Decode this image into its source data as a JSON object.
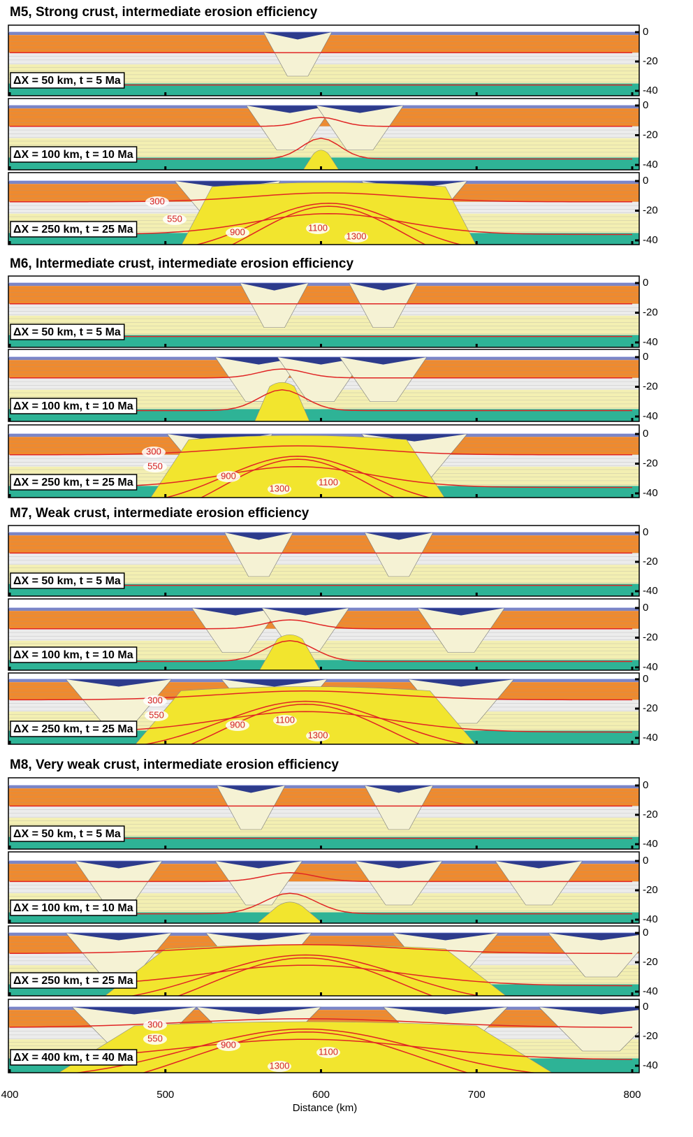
{
  "figure": {
    "groups": [
      {
        "title": "M5, Strong crust, intermediate erosion efficiency",
        "panels": [
          {
            "label": "ΔX = 50 km, t = 5 Ma"
          },
          {
            "label": "ΔX = 100 km, t = 10 Ma"
          },
          {
            "label": "ΔX = 250 km, t = 25 Ma",
            "isotherms": [
              "300",
              "550",
              "900",
              "1100",
              "1300"
            ]
          }
        ]
      },
      {
        "title": "M6, Intermediate crust, intermediate erosion efficiency",
        "panels": [
          {
            "label": "ΔX = 50 km, t = 5 Ma"
          },
          {
            "label": "ΔX = 100 km, t = 10 Ma"
          },
          {
            "label": "ΔX = 250 km, t = 25 Ma",
            "isotherms": [
              "300",
              "550",
              "900",
              "1100",
              "1300"
            ]
          }
        ]
      },
      {
        "title": "M7, Weak crust, intermediate erosion efficiency",
        "panels": [
          {
            "label": "ΔX = 50 km, t = 5 Ma"
          },
          {
            "label": "ΔX = 100 km, t = 10 Ma"
          },
          {
            "label": "ΔX = 250 km, t = 25 Ma",
            "isotherms": [
              "300",
              "550",
              "900",
              "1100",
              "1300"
            ]
          }
        ]
      },
      {
        "title": "M8, Very weak crust, intermediate erosion efficiency",
        "panels": [
          {
            "label": "ΔX = 50 km, t = 5 Ma"
          },
          {
            "label": "ΔX = 100 km, t = 10 Ma"
          },
          {
            "label": "ΔX = 250 km, t = 25 Ma"
          },
          {
            "label": "ΔX = 400 km, t = 40 Ma",
            "isotherms": [
              "300",
              "550",
              "900",
              "1100",
              "1300"
            ]
          }
        ]
      }
    ],
    "yticks": [
      0,
      -20,
      -40
    ],
    "xticks": [
      400,
      500,
      600,
      700,
      800
    ],
    "xlabel": "Distance (km)"
  }
}
